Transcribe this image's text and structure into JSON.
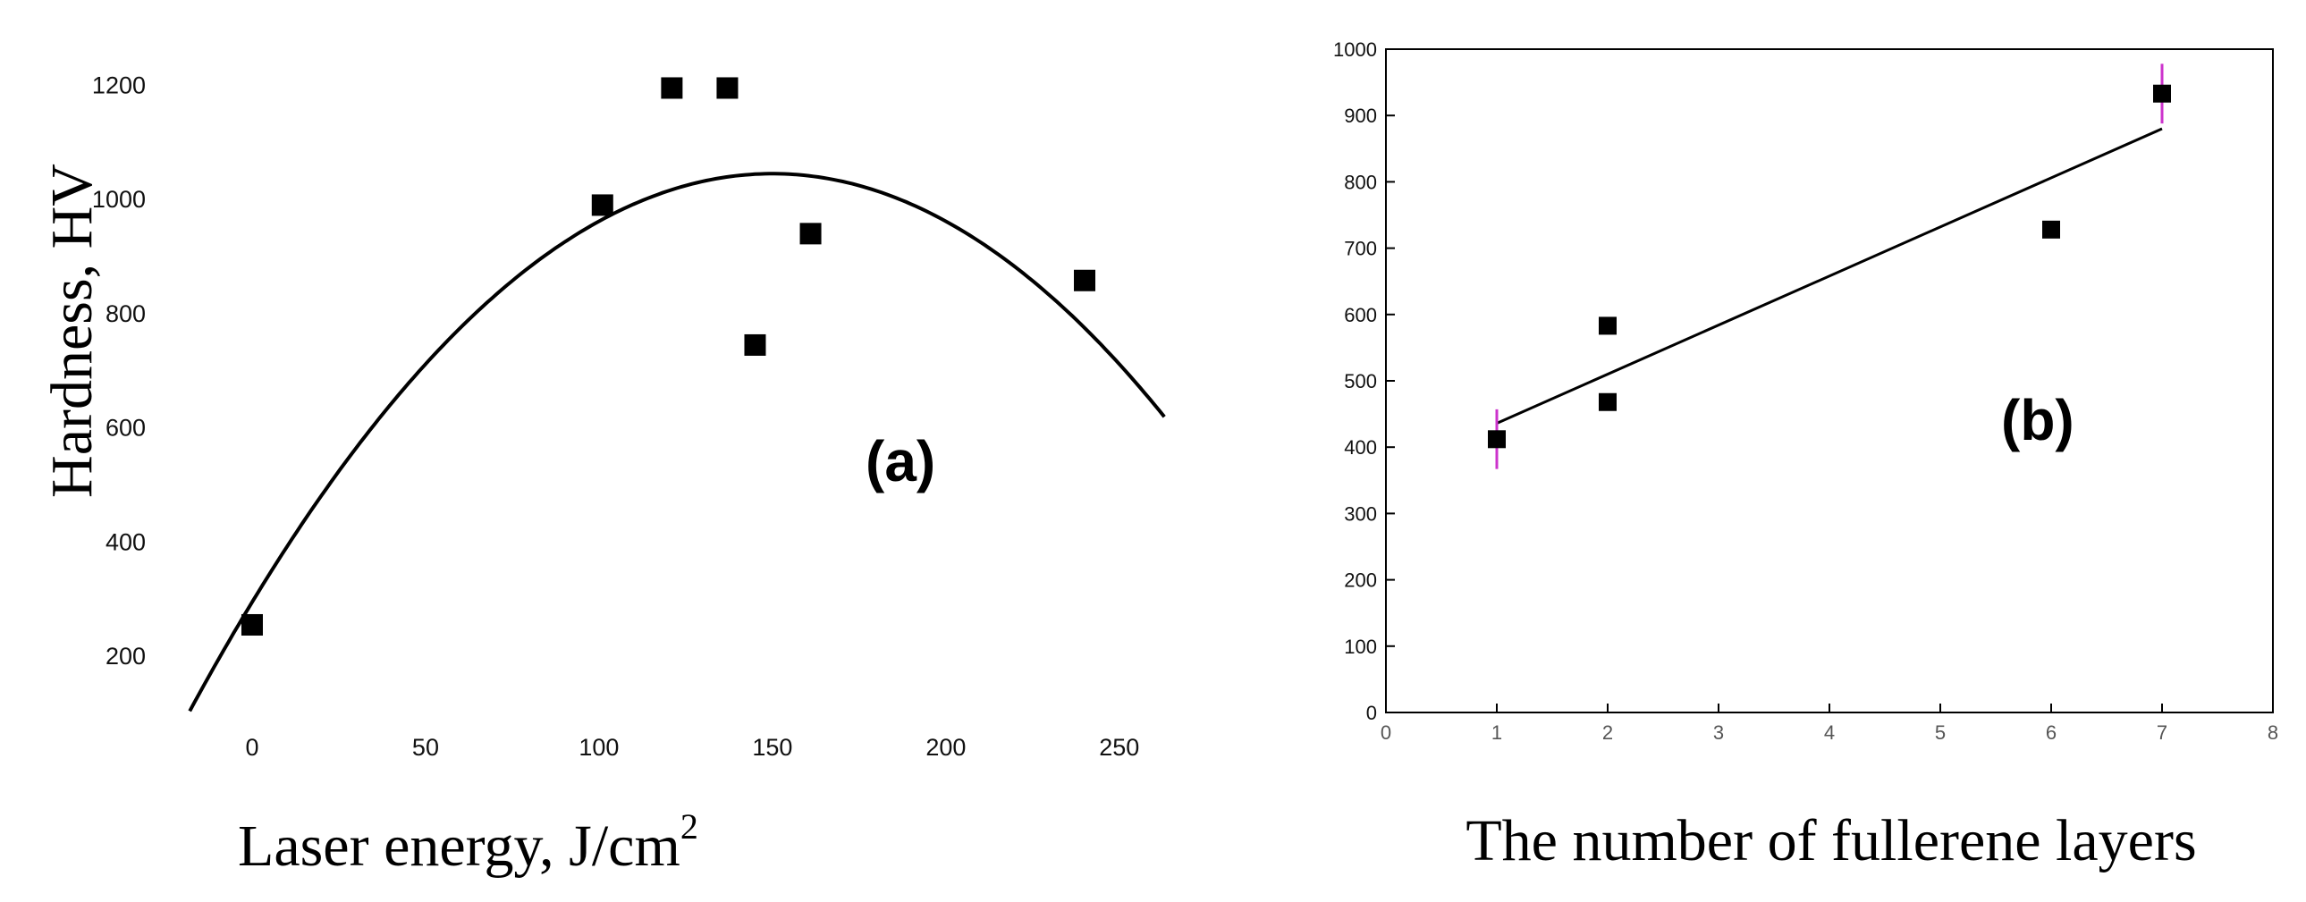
{
  "chart_data": [
    {
      "panel": "(a)",
      "type": "scatter",
      "title": "",
      "xlabel": "Laser energy, J/cm",
      "xlabel_superscript": "2",
      "ylabel": "Hardness, HV",
      "xlim": [
        -25,
        265
      ],
      "ylim": [
        100,
        1310
      ],
      "x_ticks": [
        "0",
        "50",
        "100",
        "150",
        "200",
        "250"
      ],
      "y_ticks": [
        "200",
        "400",
        "600",
        "800",
        "1000",
        "1200"
      ],
      "points": [
        {
          "x": 0,
          "y": 255
        },
        {
          "x": 101,
          "y": 990
        },
        {
          "x": 121,
          "y": 1195
        },
        {
          "x": 137,
          "y": 1195
        },
        {
          "x": 145,
          "y": 745
        },
        {
          "x": 161,
          "y": 940
        },
        {
          "x": 240,
          "y": 858
        }
      ],
      "fit": {
        "kind": "quadratic",
        "vertex_x": 150,
        "vertex_y": 1045,
        "curvature": -0.03334,
        "x_range": [
          -18,
          263
        ]
      },
      "grid": false,
      "marker_color": "#000000",
      "line_color": "#000000"
    },
    {
      "panel": "(b)",
      "type": "scatter",
      "title": "",
      "xlabel": "The number of fullerene layers",
      "ylabel": "",
      "xlim": [
        0,
        8
      ],
      "ylim": [
        0,
        1000
      ],
      "x_ticks": [
        "0",
        "1",
        "2",
        "3",
        "4",
        "5",
        "6",
        "7",
        "8"
      ],
      "y_ticks": [
        "0",
        "100",
        "200",
        "300",
        "400",
        "500",
        "600",
        "700",
        "800",
        "900",
        "1000"
      ],
      "points": [
        {
          "x": 1,
          "y": 412,
          "err": 45
        },
        {
          "x": 2,
          "y": 583
        },
        {
          "x": 2,
          "y": 468
        },
        {
          "x": 6,
          "y": 728
        },
        {
          "x": 7,
          "y": 933,
          "err": 45
        }
      ],
      "fit": {
        "kind": "linear",
        "slope": 74,
        "intercept": 362,
        "x_range": [
          1,
          7
        ]
      },
      "grid": false,
      "marker_color": "#000000",
      "line_color": "#000000",
      "errorbar_color": "#cc33cc"
    }
  ]
}
